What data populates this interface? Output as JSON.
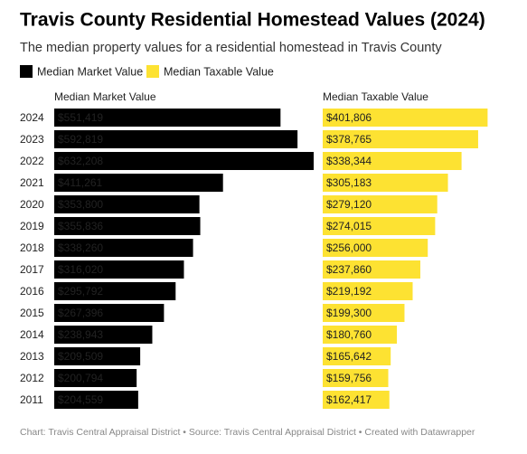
{
  "chart_data": {
    "type": "bar",
    "title": "Travis County Residential Homestead Values (2024)",
    "subtitle": "The median property values for a residential homestead in Travis County",
    "footer": "Chart: Travis Central Appraisal District • Source: Travis Central Appraisal District • Created with Datawrapper",
    "categories": [
      "2024",
      "2023",
      "2022",
      "2021",
      "2020",
      "2019",
      "2018",
      "2017",
      "2016",
      "2015",
      "2014",
      "2013",
      "2012",
      "2011"
    ],
    "series": [
      {
        "name": "Median Market Value",
        "color": "#000000",
        "values": [
          551419,
          592819,
          632208,
          411261,
          353800,
          355836,
          338260,
          316020,
          295792,
          267396,
          238943,
          209509,
          200794,
          204559
        ],
        "value_labels": [
          "$551,419",
          "$592,819",
          "$632,208",
          "$411,261",
          "$353,800",
          "$355,836",
          "$338,260",
          "$316,020",
          "$295,792",
          "$267,396",
          "$238,943",
          "$209,509",
          "$200,794",
          "$204,559"
        ]
      },
      {
        "name": "Median Taxable Value",
        "color": "#fde232",
        "values": [
          401806,
          378765,
          338344,
          305183,
          279120,
          274015,
          256000,
          237860,
          219192,
          199300,
          180760,
          165642,
          159756,
          162417
        ],
        "value_labels": [
          "$401,806",
          "$378,765",
          "$338,344",
          "$305,183",
          "$279,120",
          "$274,015",
          "$256,000",
          "$237,860",
          "$219,192",
          "$199,300",
          "$180,760",
          "$165,642",
          "$159,756",
          "$162,417"
        ]
      }
    ]
  }
}
